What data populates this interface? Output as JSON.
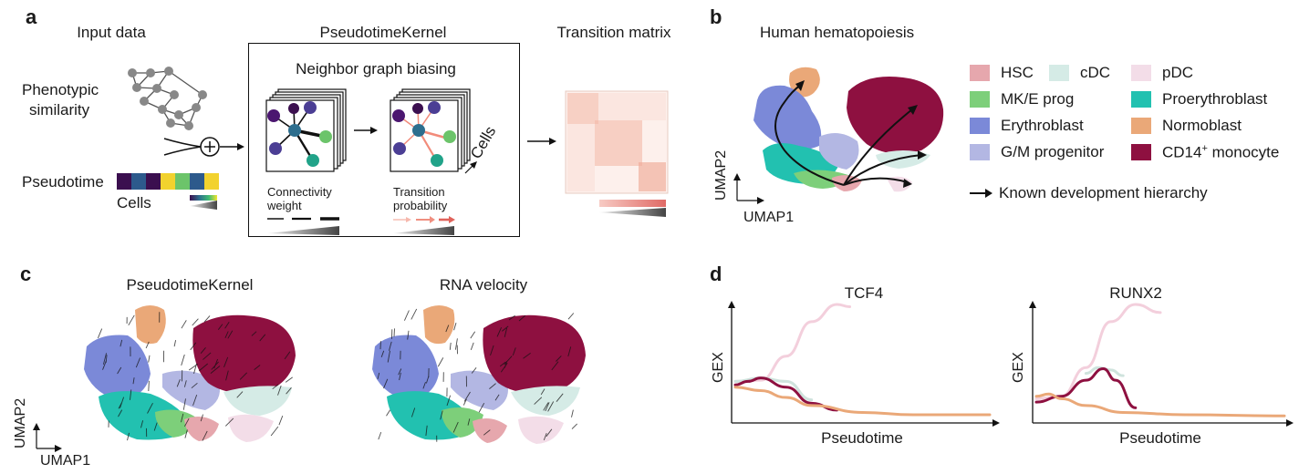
{
  "panel_labels": {
    "a": "a",
    "b": "b",
    "c": "c",
    "d": "d"
  },
  "panel_a": {
    "input_title": "Input data",
    "kernel_title": "PseudotimeKernel",
    "matrix_title": "Transition matrix",
    "phenotypic_line1": "Phenotypic",
    "phenotypic_line2": "similarity",
    "pseudotime_label": "Pseudotime",
    "cells_label": "Cells",
    "neighbor_title": "Neighbor graph biasing",
    "connectivity_line1": "Connectivity",
    "connectivity_line2": "weight",
    "transition_line1": "Transition",
    "transition_line2": "probability",
    "cells_rotated": "Cells",
    "pseudotime_colors": [
      "#3b0f4f",
      "#2d5a8c",
      "#3b0f4f",
      "#f2d22e",
      "#6cc46a",
      "#2d5a8c",
      "#f2d22e"
    ]
  },
  "panel_b": {
    "title": "Human hematopoiesis",
    "axis_x": "UMAP1",
    "axis_y": "UMAP2",
    "legend": [
      {
        "name": "HSC",
        "color": "#e6a7ad"
      },
      {
        "name": "cDC",
        "color": "#d5ebe6"
      },
      {
        "name": "pDC",
        "color": "#f3dde8"
      },
      {
        "name": "MK/E prog",
        "color": "#7dcf7a"
      },
      {
        "name": "Proerythroblast",
        "color": "#22c1b0"
      },
      {
        "name": "Erythroblast",
        "color": "#7b89d8"
      },
      {
        "name": "Normoblast",
        "color": "#eaa878"
      },
      {
        "name": "G/M progenitor",
        "color": "#b3b7e3"
      },
      {
        "name": "CD14",
        "sup": "+",
        "suffix": " monocyte",
        "color": "#8e1040"
      }
    ],
    "known_hierarchy": "Known development hierarchy"
  },
  "panel_c": {
    "left_title": "PseudotimeKernel",
    "right_title": "RNA velocity",
    "axis_x": "UMAP1",
    "axis_y": "UMAP2"
  },
  "panel_d": {
    "y_label": "GEX",
    "charts": [
      {
        "title": "TCF4",
        "xlabel": "Pseudotime"
      },
      {
        "title": "RUNX2",
        "xlabel": "Pseudotime"
      }
    ]
  },
  "chart_data": [
    {
      "type": "line",
      "title": "TCF4",
      "xlabel": "Pseudotime",
      "ylabel": "GEX",
      "xlim": [
        0,
        1
      ],
      "ylim": [
        0,
        1
      ],
      "series": [
        {
          "name": "pDC",
          "color": "#f3cfdc",
          "x": [
            0.0,
            0.1,
            0.2,
            0.3,
            0.4,
            0.45
          ],
          "y": [
            0.33,
            0.34,
            0.55,
            0.85,
            1.0,
            0.98
          ]
        },
        {
          "name": "cDC",
          "color": "#cfe3dd",
          "x": [
            0.0,
            0.1,
            0.2,
            0.3
          ],
          "y": [
            0.33,
            0.36,
            0.33,
            0.17
          ]
        },
        {
          "name": "CD14+ monocyte",
          "color": "#8e1040",
          "x": [
            0.0,
            0.05,
            0.1,
            0.2,
            0.3,
            0.4
          ],
          "y": [
            0.3,
            0.33,
            0.36,
            0.28,
            0.14,
            0.08
          ]
        },
        {
          "name": "Normoblast",
          "color": "#eaa878",
          "x": [
            0.0,
            0.1,
            0.2,
            0.3,
            0.5,
            0.7,
            1.0
          ],
          "y": [
            0.28,
            0.25,
            0.19,
            0.12,
            0.06,
            0.04,
            0.04
          ]
        }
      ]
    },
    {
      "type": "line",
      "title": "RUNX2",
      "xlabel": "Pseudotime",
      "ylabel": "GEX",
      "xlim": [
        0,
        1
      ],
      "ylim": [
        0,
        1
      ],
      "series": [
        {
          "name": "pDC",
          "color": "#f3cfdc",
          "x": [
            0.0,
            0.1,
            0.2,
            0.3,
            0.4,
            0.5
          ],
          "y": [
            0.18,
            0.2,
            0.45,
            0.85,
            1.0,
            0.93
          ]
        },
        {
          "name": "cDC",
          "color": "#cfe3dd",
          "x": [
            0.2,
            0.25,
            0.3,
            0.35
          ],
          "y": [
            0.4,
            0.45,
            0.43,
            0.38
          ]
        },
        {
          "name": "CD14+ monocyte",
          "color": "#8e1040",
          "x": [
            0.0,
            0.1,
            0.2,
            0.27,
            0.32,
            0.4
          ],
          "y": [
            0.15,
            0.2,
            0.34,
            0.44,
            0.34,
            0.1
          ]
        },
        {
          "name": "Normoblast",
          "color": "#eaa878",
          "x": [
            0.0,
            0.05,
            0.1,
            0.2,
            0.35,
            0.6,
            1.0
          ],
          "y": [
            0.2,
            0.22,
            0.18,
            0.12,
            0.06,
            0.04,
            0.03
          ]
        }
      ]
    }
  ]
}
